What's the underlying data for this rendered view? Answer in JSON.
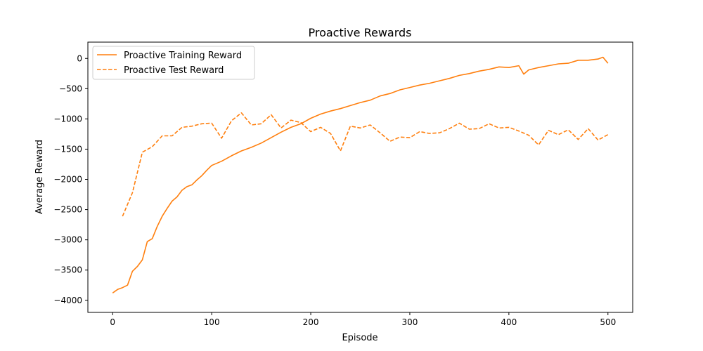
{
  "chart_data": {
    "type": "line",
    "title": "Proactive Rewards",
    "xlabel": "Episode",
    "ylabel": "Average Reward",
    "xlim": [
      -25,
      525
    ],
    "ylim": [
      -4200,
      270
    ],
    "xticks": [
      0,
      100,
      200,
      300,
      400,
      500
    ],
    "yticks": [
      0,
      -500,
      -1000,
      -1500,
      -2000,
      -2500,
      -3000,
      -3500,
      -4000
    ],
    "xtick_labels": [
      "0",
      "100",
      "200",
      "300",
      "400",
      "500"
    ],
    "ytick_labels": [
      "0",
      "−500",
      "−1000",
      "−1500",
      "−2000",
      "−2500",
      "−3000",
      "−3500",
      "−4000"
    ],
    "grid": false,
    "legend_position": "top-left",
    "color": "#ff7f0e",
    "series": [
      {
        "name": "Proactive Training Reward",
        "style": "solid",
        "x": [
          0,
          5,
          10,
          15,
          20,
          25,
          30,
          35,
          40,
          45,
          50,
          55,
          60,
          65,
          70,
          75,
          80,
          85,
          90,
          95,
          100,
          110,
          120,
          130,
          140,
          150,
          160,
          170,
          180,
          190,
          200,
          210,
          220,
          230,
          240,
          250,
          260,
          270,
          280,
          290,
          300,
          310,
          320,
          330,
          340,
          350,
          360,
          370,
          380,
          390,
          400,
          410,
          415,
          420,
          430,
          440,
          450,
          460,
          470,
          480,
          490,
          495,
          500
        ],
        "y": [
          -3880,
          -3820,
          -3790,
          -3750,
          -3520,
          -3440,
          -3330,
          -3030,
          -2980,
          -2780,
          -2610,
          -2480,
          -2360,
          -2290,
          -2180,
          -2120,
          -2090,
          -2010,
          -1940,
          -1850,
          -1770,
          -1700,
          -1610,
          -1530,
          -1470,
          -1400,
          -1310,
          -1220,
          -1140,
          -1080,
          -990,
          -920,
          -870,
          -830,
          -780,
          -730,
          -690,
          -620,
          -580,
          -520,
          -480,
          -440,
          -410,
          -370,
          -330,
          -280,
          -250,
          -210,
          -180,
          -140,
          -150,
          -120,
          -260,
          -190,
          -150,
          -120,
          -90,
          -80,
          -30,
          -30,
          -10,
          20,
          -80
        ]
      },
      {
        "name": "Proactive Test Reward",
        "style": "dashed",
        "x": [
          10,
          20,
          30,
          40,
          50,
          60,
          70,
          80,
          90,
          100,
          110,
          120,
          130,
          140,
          150,
          160,
          170,
          180,
          190,
          200,
          210,
          220,
          230,
          240,
          250,
          260,
          270,
          280,
          290,
          300,
          310,
          320,
          330,
          340,
          350,
          360,
          370,
          380,
          390,
          400,
          410,
          420,
          430,
          440,
          450,
          460,
          470,
          480,
          490,
          500
        ],
        "y": [
          -2610,
          -2220,
          -1550,
          -1460,
          -1280,
          -1280,
          -1140,
          -1120,
          -1080,
          -1070,
          -1320,
          -1030,
          -900,
          -1100,
          -1080,
          -930,
          -1150,
          -1020,
          -1060,
          -1210,
          -1140,
          -1240,
          -1530,
          -1120,
          -1150,
          -1100,
          -1230,
          -1370,
          -1300,
          -1310,
          -1210,
          -1240,
          -1230,
          -1160,
          -1070,
          -1170,
          -1160,
          -1080,
          -1150,
          -1140,
          -1200,
          -1270,
          -1430,
          -1190,
          -1260,
          -1180,
          -1340,
          -1160,
          -1350,
          -1260
        ]
      }
    ]
  }
}
